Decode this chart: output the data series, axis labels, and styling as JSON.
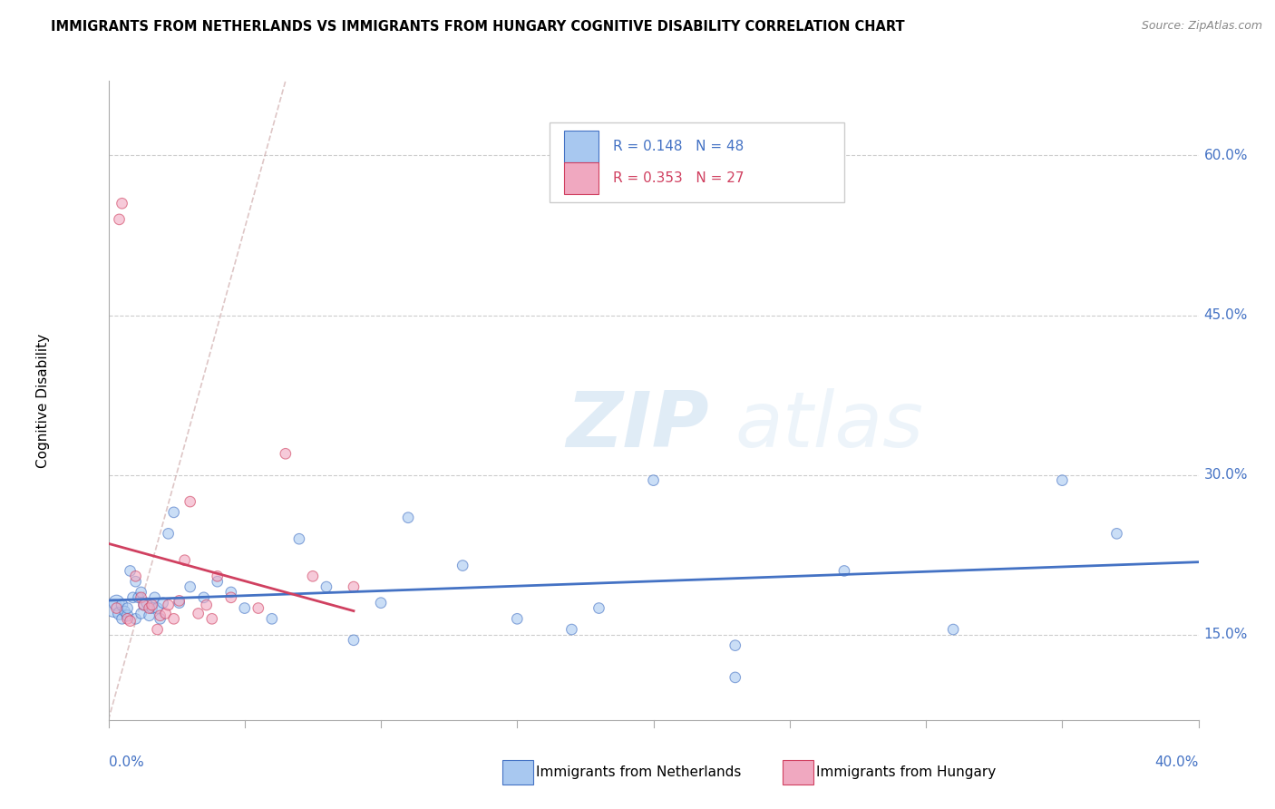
{
  "title": "IMMIGRANTS FROM NETHERLANDS VS IMMIGRANTS FROM HUNGARY COGNITIVE DISABILITY CORRELATION CHART",
  "source": "Source: ZipAtlas.com",
  "ylabel": "Cognitive Disability",
  "yticks": [
    "15.0%",
    "30.0%",
    "45.0%",
    "60.0%"
  ],
  "ytick_vals": [
    0.15,
    0.3,
    0.45,
    0.6
  ],
  "xlim": [
    0.0,
    0.4
  ],
  "ylim": [
    0.07,
    0.67
  ],
  "legend1_r": "0.148",
  "legend1_n": "48",
  "legend2_r": "0.353",
  "legend2_n": "27",
  "color_netherlands": "#a8c8f0",
  "color_hungary": "#f0a8c0",
  "color_netherlands_line": "#4472c4",
  "color_hungary_line": "#d04060",
  "watermark_zip": "ZIP",
  "watermark_atlas": "atlas",
  "netherlands_x": [
    0.002,
    0.003,
    0.004,
    0.005,
    0.005,
    0.006,
    0.007,
    0.007,
    0.008,
    0.009,
    0.01,
    0.01,
    0.011,
    0.012,
    0.012,
    0.013,
    0.014,
    0.015,
    0.016,
    0.017,
    0.018,
    0.019,
    0.02,
    0.022,
    0.024,
    0.026,
    0.03,
    0.035,
    0.04,
    0.045,
    0.05,
    0.06,
    0.07,
    0.08,
    0.09,
    0.1,
    0.11,
    0.13,
    0.15,
    0.17,
    0.2,
    0.23,
    0.27,
    0.31,
    0.35,
    0.37,
    0.23,
    0.18
  ],
  "netherlands_y": [
    0.175,
    0.18,
    0.17,
    0.178,
    0.165,
    0.172,
    0.168,
    0.175,
    0.21,
    0.185,
    0.165,
    0.2,
    0.185,
    0.19,
    0.17,
    0.178,
    0.18,
    0.168,
    0.175,
    0.185,
    0.175,
    0.165,
    0.18,
    0.245,
    0.265,
    0.18,
    0.195,
    0.185,
    0.2,
    0.19,
    0.175,
    0.165,
    0.24,
    0.195,
    0.145,
    0.18,
    0.26,
    0.215,
    0.165,
    0.155,
    0.295,
    0.11,
    0.21,
    0.155,
    0.295,
    0.245,
    0.14,
    0.175
  ],
  "netherlands_size": [
    200,
    150,
    100,
    80,
    70,
    70,
    80,
    70,
    70,
    70,
    70,
    70,
    70,
    70,
    70,
    70,
    70,
    70,
    70,
    70,
    70,
    70,
    70,
    70,
    70,
    70,
    70,
    70,
    70,
    70,
    70,
    70,
    70,
    70,
    70,
    70,
    70,
    70,
    70,
    70,
    70,
    70,
    70,
    70,
    70,
    70,
    70,
    70
  ],
  "hungary_x": [
    0.003,
    0.004,
    0.005,
    0.007,
    0.008,
    0.01,
    0.012,
    0.013,
    0.015,
    0.016,
    0.018,
    0.019,
    0.021,
    0.022,
    0.024,
    0.026,
    0.028,
    0.03,
    0.033,
    0.036,
    0.038,
    0.04,
    0.045,
    0.055,
    0.065,
    0.075,
    0.09
  ],
  "hungary_y": [
    0.175,
    0.54,
    0.555,
    0.165,
    0.163,
    0.205,
    0.185,
    0.178,
    0.175,
    0.178,
    0.155,
    0.168,
    0.17,
    0.178,
    0.165,
    0.182,
    0.22,
    0.275,
    0.17,
    0.178,
    0.165,
    0.205,
    0.185,
    0.175,
    0.32,
    0.205,
    0.195
  ],
  "hungary_size": [
    70,
    70,
    70,
    70,
    70,
    70,
    70,
    70,
    70,
    70,
    70,
    70,
    70,
    70,
    70,
    70,
    70,
    70,
    70,
    70,
    70,
    70,
    70,
    70,
    70,
    70,
    70
  ]
}
